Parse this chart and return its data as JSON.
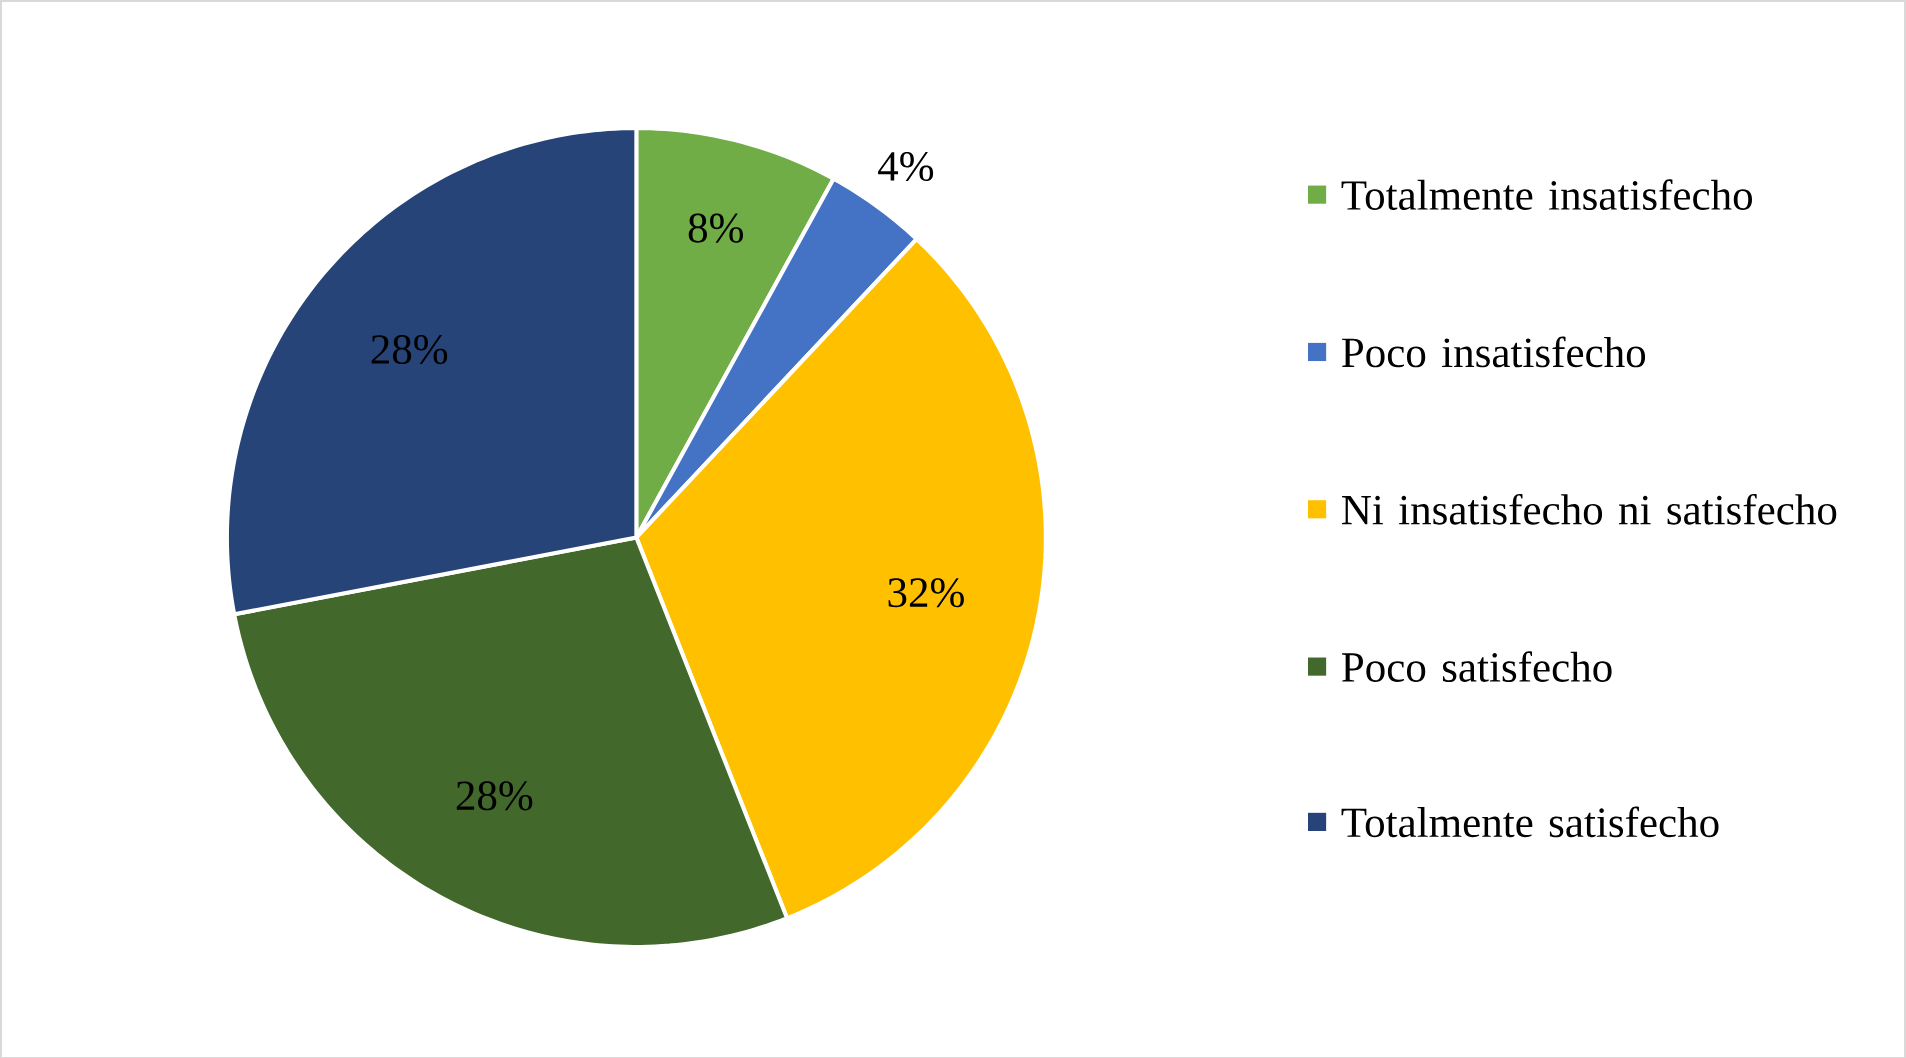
{
  "chart_data": {
    "type": "pie",
    "categories": [
      "Totalmente insatisfecho",
      "Poco insatisfecho",
      "Ni insatisfecho ni satisfecho",
      "Poco satisfecho",
      "Totalmente satisfecho"
    ],
    "values": [
      8,
      4,
      32,
      28,
      28
    ],
    "value_labels": [
      "8%",
      "4%",
      "32%",
      "28%",
      "28%"
    ],
    "colors": [
      "#70ad47",
      "#4472c4",
      "#ffc000",
      "#43682b",
      "#264478"
    ],
    "legend": "right"
  }
}
